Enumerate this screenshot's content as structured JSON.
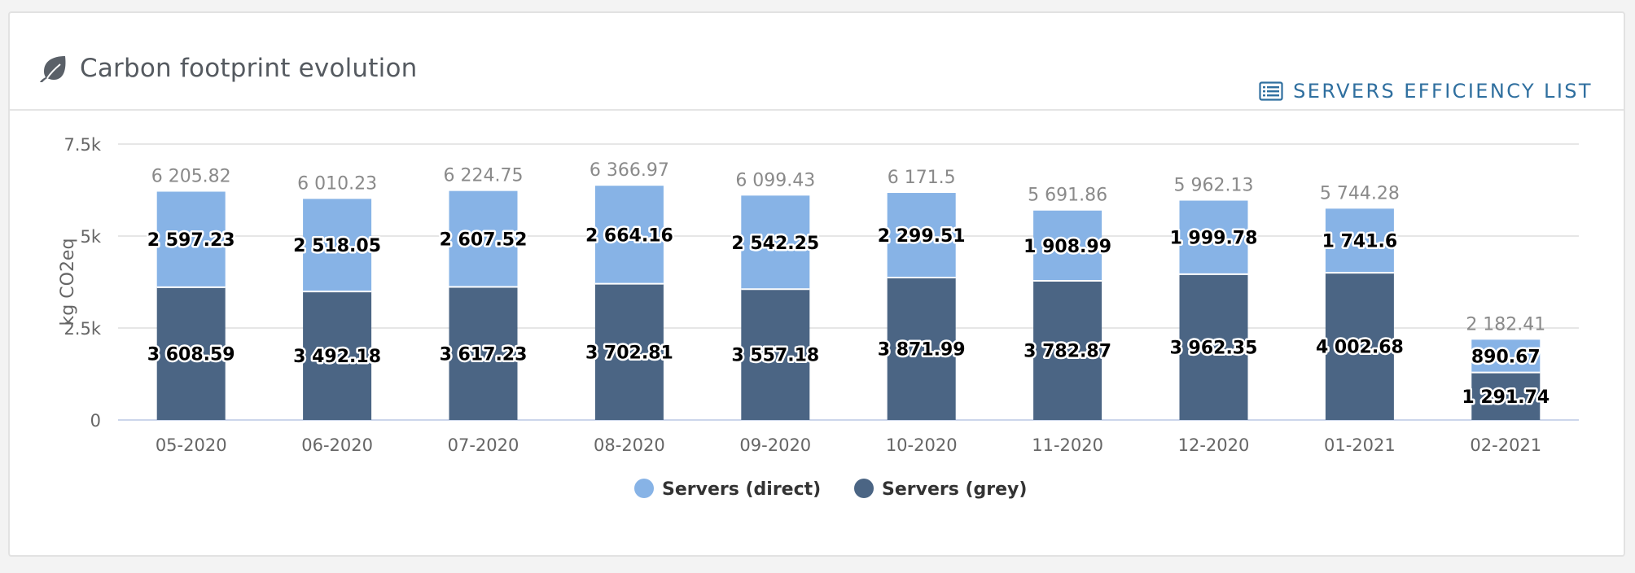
{
  "header": {
    "title": "Carbon footprint evolution",
    "title_icon": "leaf-icon",
    "action_label": "SERVERS EFFICIENCY LIST",
    "action_icon": "list-icon"
  },
  "colors": {
    "direct": "#87b3e6",
    "grey": "#4b6584",
    "accent": "#2f6f9f"
  },
  "chart_data": {
    "type": "bar",
    "stacked": true,
    "categories": [
      "05-2020",
      "06-2020",
      "07-2020",
      "08-2020",
      "09-2020",
      "10-2020",
      "11-2020",
      "12-2020",
      "01-2021",
      "02-2021"
    ],
    "series": [
      {
        "name": "Servers (grey)",
        "values": [
          3608.59,
          3492.18,
          3617.23,
          3702.81,
          3557.18,
          3871.99,
          3782.87,
          3962.35,
          4002.68,
          1291.74
        ],
        "labels": [
          "3 608.59",
          "3 492.18",
          "3 617.23",
          "3 702.81",
          "3 557.18",
          "3 871.99",
          "3 782.87",
          "3 962.35",
          "4 002.68",
          "1 291.74"
        ]
      },
      {
        "name": "Servers (direct)",
        "values": [
          2597.23,
          2518.05,
          2607.52,
          2664.16,
          2542.25,
          2299.51,
          1908.99,
          1999.78,
          1741.6,
          890.67
        ],
        "labels": [
          "2 597.23",
          "2 518.05",
          "2 607.52",
          "2 664.16",
          "2 542.25",
          "2 299.51",
          "1 908.99",
          "1 999.78",
          "1 741.6",
          "890.67"
        ]
      }
    ],
    "totals": [
      6205.82,
      6010.23,
      6224.75,
      6366.97,
      6099.43,
      6171.5,
      5691.86,
      5962.13,
      5744.28,
      2182.41
    ],
    "total_labels": [
      "6 205.82",
      "6 010.23",
      "6 224.75",
      "6 366.97",
      "6 099.43",
      "6 171.5",
      "5 691.86",
      "5 962.13",
      "5 744.28",
      "2 182.41"
    ],
    "ylabel": "kg CO2eq",
    "ylim": [
      0,
      7500
    ],
    "yticks": [
      0,
      2500,
      5000,
      7500
    ],
    "ytick_labels": [
      "0",
      "2.5k",
      "5k",
      "7.5k"
    ],
    "legend": [
      {
        "name": "Servers (direct)",
        "color": "#87b3e6"
      },
      {
        "name": "Servers (grey)",
        "color": "#4b6584"
      }
    ],
    "legend_position": "bottom-center",
    "grid": true
  }
}
